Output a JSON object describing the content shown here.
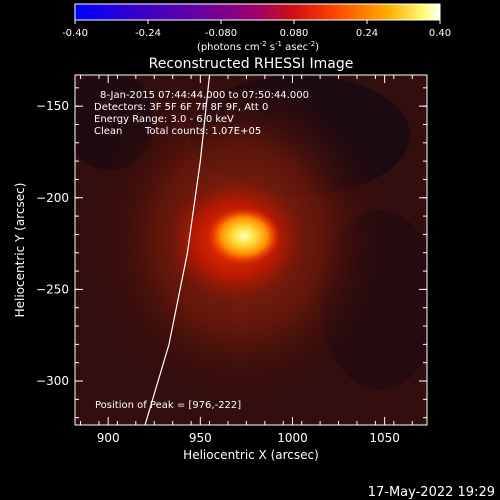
{
  "colorbar": {
    "ticks": [
      "-0.40",
      "-0.24",
      "-0.080",
      "0.080",
      "0.24",
      "0.40"
    ],
    "units_text": "(photons cm",
    "units_sup1": "-2",
    "units_mid": " s",
    "units_sup2": "-1",
    "units_end": " asec",
    "units_sup3": "-2",
    "units_close": ")",
    "min": -0.4,
    "max": 0.4
  },
  "annotations": {
    "time_range": "8-Jan-2015 07:44:44.000 to 07:50:44.000",
    "detectors": "Detectors: 3F 5F 6F 7F 8F 9F, Att 0",
    "energy": "Energy Range: 3.0 - 6.0 keV",
    "method": "Clean",
    "counts": "Total counts: 1.07E+05",
    "peak": "Position of Peak = [976,-222]"
  },
  "footer_date": "17-May-2022 19:29",
  "chart_data": {
    "type": "heatmap",
    "title": "Reconstructed RHESSI Image",
    "xlabel": "Heliocentric X (arcsec)",
    "ylabel": "Heliocentric Y (arcsec)",
    "xlim": [
      882,
      1073
    ],
    "ylim": [
      -324,
      -133
    ],
    "xticks": [
      900,
      950,
      1000,
      1050
    ],
    "yticks": [
      -150,
      -200,
      -250,
      -300
    ],
    "xtick_labels": [
      "900",
      "950",
      "1000",
      "1050"
    ],
    "ytick_labels": [
      "−150",
      "−200",
      "−250",
      "−300"
    ],
    "peak": {
      "x": 976,
      "y": -222,
      "value": 0.4
    },
    "colormap": "hot (dark red to yellow-white)",
    "limb_curve": [
      {
        "x": 955,
        "y": -133
      },
      {
        "x": 950,
        "y": -180
      },
      {
        "x": 943,
        "y": -230
      },
      {
        "x": 933,
        "y": -280
      },
      {
        "x": 920,
        "y": -324
      }
    ]
  }
}
